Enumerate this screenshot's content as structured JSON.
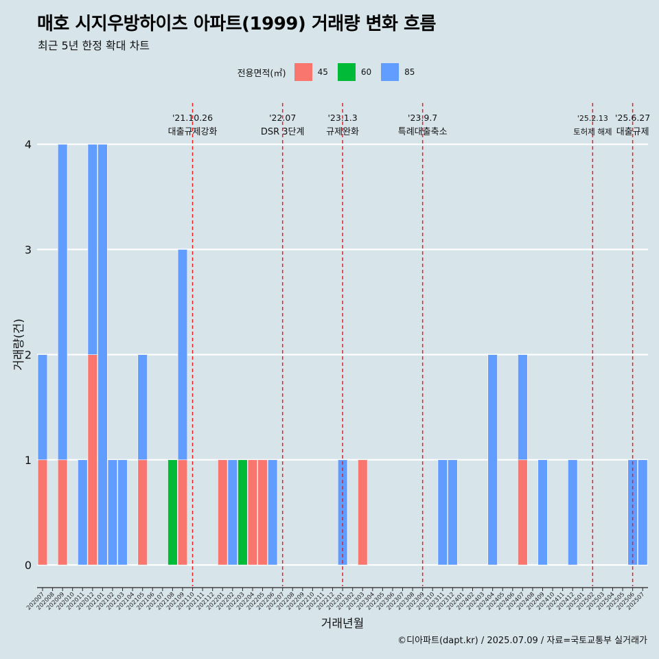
{
  "title": "매호 시지우방하이츠 아파트(1999) 거래량 변화 흐름",
  "subtitle": "최근 5년 한정 확대 차트",
  "caption": "©디아파트(dapt.kr) / 2025.07.09 / 자료=국토교통부 실거래가",
  "legend": {
    "title": "전용면적(㎡)",
    "items": [
      {
        "label": "45",
        "color": "#f8766d"
      },
      {
        "label": "60",
        "color": "#00ba38"
      },
      {
        "label": "85",
        "color": "#619cff"
      }
    ]
  },
  "chart_data": {
    "type": "bar",
    "xlabel": "거래년월",
    "ylabel": "거래량(건)",
    "ylim": [
      0,
      4
    ],
    "yticks": [
      0,
      1,
      2,
      3,
      4
    ],
    "categories": [
      "202007",
      "202008",
      "202009",
      "202010",
      "202011",
      "202012",
      "202101",
      "202102",
      "202103",
      "202104",
      "202105",
      "202106",
      "202107",
      "202108",
      "202109",
      "202110",
      "202111",
      "202112",
      "202201",
      "202202",
      "202203",
      "202204",
      "202205",
      "202206",
      "202207",
      "202208",
      "202209",
      "202210",
      "202211",
      "202212",
      "202301",
      "202302",
      "202303",
      "202304",
      "202305",
      "202306",
      "202307",
      "202308",
      "202309",
      "202310",
      "202311",
      "202312",
      "202401",
      "202402",
      "202403",
      "202404",
      "202405",
      "202406",
      "202407",
      "202408",
      "202409",
      "202410",
      "202411",
      "202412",
      "202501",
      "202502",
      "202503",
      "202504",
      "202505",
      "202506",
      "202507"
    ],
    "series": [
      {
        "name": "45",
        "color": "#f8766d",
        "values": [
          1,
          0,
          1,
          0,
          0,
          2,
          0,
          0,
          0,
          0,
          1,
          0,
          0,
          0,
          1,
          0,
          0,
          0,
          1,
          0,
          0,
          1,
          1,
          0,
          0,
          0,
          0,
          0,
          0,
          0,
          0,
          0,
          1,
          0,
          0,
          0,
          0,
          0,
          0,
          0,
          0,
          0,
          0,
          0,
          0,
          0,
          0,
          0,
          1,
          0,
          0,
          0,
          0,
          0,
          0,
          0,
          0,
          0,
          0,
          0,
          0
        ]
      },
      {
        "name": "60",
        "color": "#00ba38",
        "values": [
          0,
          0,
          0,
          0,
          0,
          0,
          0,
          0,
          0,
          0,
          0,
          0,
          0,
          1,
          0,
          0,
          0,
          0,
          0,
          0,
          1,
          0,
          0,
          0,
          0,
          0,
          0,
          0,
          0,
          0,
          0,
          0,
          0,
          0,
          0,
          0,
          0,
          0,
          0,
          0,
          0,
          0,
          0,
          0,
          0,
          0,
          0,
          0,
          0,
          0,
          0,
          0,
          0,
          0,
          0,
          0,
          0,
          0,
          0,
          0,
          0
        ]
      },
      {
        "name": "85",
        "color": "#619cff",
        "values": [
          1,
          0,
          3,
          0,
          1,
          2,
          4,
          1,
          1,
          0,
          1,
          0,
          0,
          0,
          2,
          0,
          0,
          0,
          0,
          1,
          0,
          0,
          0,
          1,
          0,
          0,
          0,
          0,
          0,
          0,
          1,
          0,
          0,
          0,
          0,
          0,
          0,
          0,
          0,
          0,
          1,
          1,
          0,
          0,
          0,
          2,
          0,
          0,
          1,
          0,
          1,
          0,
          0,
          1,
          0,
          0,
          0,
          0,
          0,
          1,
          1
        ]
      }
    ],
    "annotations": [
      {
        "date": "202110",
        "label_top": "'21.10.26",
        "label_bottom": "대출규제강화"
      },
      {
        "date": "202207",
        "label_top": "'22.07",
        "label_bottom": "DSR 3단계"
      },
      {
        "date": "202301",
        "label_top": "'23.1.3",
        "label_bottom": "규제완화"
      },
      {
        "date": "202309",
        "label_top": "'23.9.7",
        "label_bottom": "특례대출축소"
      },
      {
        "date": "202502",
        "label_top": "'25.2.13",
        "label_bottom": "토허제 해제"
      },
      {
        "date": "202506",
        "label_top": "'25.6.27",
        "label_bottom": "대출규제"
      }
    ]
  }
}
